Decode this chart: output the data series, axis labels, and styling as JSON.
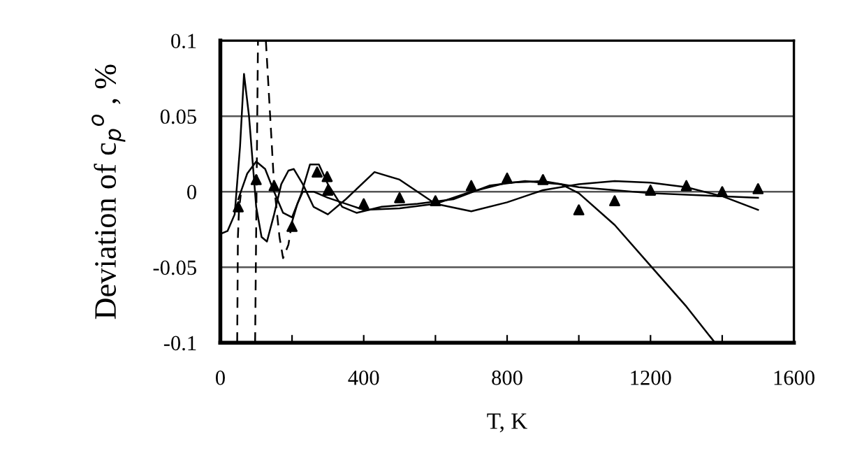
{
  "chart_data": {
    "type": "line",
    "xlabel": "T, K",
    "ylabel": "Deviation of c$_{p}$$^{o}$ , %",
    "xlim": [
      0,
      1600
    ],
    "ylim": [
      -0.1,
      0.1
    ],
    "xticks": [
      0,
      {
        "value": 200,
        "label": null
      },
      400,
      {
        "value": 600,
        "label": null
      },
      800,
      {
        "value": 1000,
        "label": null
      },
      1200,
      {
        "value": 1400,
        "label": null
      },
      1600
    ],
    "yticks": [
      {
        "value": -0.1,
        "label": "-0.1"
      },
      {
        "value": -0.05,
        "label": "-0.05"
      },
      0,
      0.05,
      0.1
    ],
    "grid": "y",
    "series": [
      {
        "line_style": "solid",
        "color": "#000000",
        "x": [
          0,
          20,
          40,
          55,
          66,
          80,
          100,
          115,
          130,
          150,
          170,
          190,
          205,
          230,
          260,
          300,
          350,
          430,
          500,
          600,
          700,
          800,
          900,
          1000,
          1100,
          1200,
          1300,
          1400,
          1500
        ],
        "values": [
          -0.028,
          -0.026,
          -0.015,
          0.03,
          0.078,
          0.05,
          -0.01,
          -0.03,
          -0.033,
          -0.015,
          0.005,
          0.014,
          0.015,
          0.005,
          -0.01,
          -0.015,
          -0.005,
          0.013,
          0.008,
          -0.008,
          -0.013,
          -0.007,
          0.001,
          0.005,
          0.007,
          0.006,
          0.003,
          -0.003,
          -0.012
        ]
      },
      {
        "line_style": "solid",
        "color": "#000000",
        "x": [
          50,
          75,
          100,
          125,
          150,
          175,
          200,
          225,
          250,
          275,
          300,
          340,
          380,
          450,
          550,
          650,
          750,
          850,
          950,
          1000,
          1100,
          1200,
          1300,
          1380
        ],
        "values": [
          -0.005,
          0.012,
          0.02,
          0.015,
          0.0,
          -0.014,
          -0.017,
          -0.002,
          0.018,
          0.018,
          0.005,
          -0.01,
          -0.014,
          -0.01,
          -0.008,
          -0.005,
          0.004,
          0.007,
          0.005,
          -0.001,
          -0.022,
          -0.049,
          -0.076,
          -0.1
        ]
      },
      {
        "line_style": "solid",
        "color": "#000000",
        "x": [
          200,
          215,
          230,
          260,
          300,
          400,
          500,
          600,
          700,
          800,
          900,
          1000,
          1100,
          1200,
          1300,
          1400,
          1500
        ],
        "values": [
          -0.02,
          -0.008,
          0.0,
          0.0,
          -0.004,
          -0.012,
          -0.011,
          -0.008,
          0.0,
          0.006,
          0.007,
          0.003,
          0.001,
          -0.001,
          -0.002,
          -0.003,
          -0.004
        ]
      },
      {
        "line_style": "dashed",
        "color": "#000000",
        "x": [
          47,
          49,
          52,
          57
        ],
        "values": [
          -0.1,
          -0.03,
          -0.012,
          -0.002
        ]
      },
      {
        "line_style": "dashed",
        "color": "#000000",
        "x": [
          97,
          105,
          116,
          127,
          150,
          165,
          175,
          190,
          200
        ],
        "values": [
          -0.1,
          0.1,
          null,
          0.1,
          0.004,
          -0.03,
          -0.044,
          -0.035,
          -0.02
        ]
      },
      {
        "type": "scatter",
        "marker": "triangle",
        "color": "#000000",
        "x": [
          50,
          100,
          150,
          200,
          270,
          298,
          300,
          400,
          500,
          600,
          700,
          800,
          900,
          1000,
          1100,
          1200,
          1300,
          1400,
          1500
        ],
        "values": [
          -0.01,
          0.008,
          0.004,
          -0.023,
          0.013,
          0.01,
          0.001,
          -0.008,
          -0.004,
          -0.006,
          0.004,
          0.009,
          0.008,
          -0.012,
          -0.006,
          0.001,
          0.004,
          0.0,
          0.002
        ]
      }
    ]
  }
}
